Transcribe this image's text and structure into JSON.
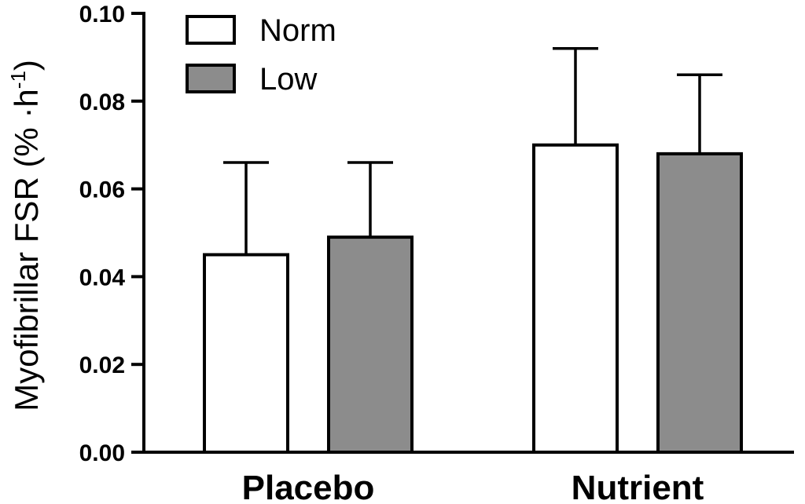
{
  "chart_data": {
    "type": "bar",
    "title": "",
    "xlabel": "",
    "ylabel": {
      "main": "Myofibrillar FSR (% ·h",
      "superscript": "-1",
      "close": ")"
    },
    "categories": [
      "Placebo",
      "Nutrient"
    ],
    "ylim": [
      0,
      0.1
    ],
    "yticks": [
      "0.00",
      "0.02",
      "0.04",
      "0.06",
      "0.08",
      "0.10"
    ],
    "ytick_values": [
      0,
      0.02,
      0.04,
      0.06,
      0.08,
      0.1
    ],
    "grid": false,
    "legend_position": "top-left",
    "series": [
      {
        "name": "Norm",
        "color": "#ffffff",
        "values": [
          0.045,
          0.07
        ],
        "error_upper": [
          0.066,
          0.092
        ]
      },
      {
        "name": "Low",
        "color": "#8c8c8c",
        "values": [
          0.049,
          0.068
        ],
        "error_upper": [
          0.066,
          0.086
        ]
      }
    ]
  }
}
